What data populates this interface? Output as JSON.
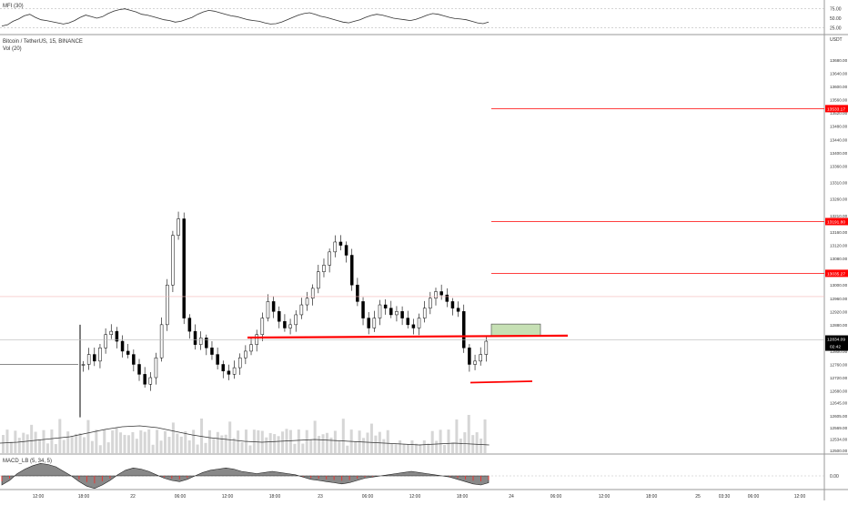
{
  "mfi_panel": {
    "label": "MFI (30)",
    "ticks": [
      "75.00",
      "50.00",
      "25.00"
    ],
    "tick_values": [
      75,
      50,
      25
    ],
    "range": [
      15,
      85
    ],
    "series": [
      30,
      33,
      42,
      48,
      56,
      60,
      52,
      46,
      44,
      41,
      38,
      35,
      38,
      44,
      52,
      58,
      54,
      50,
      54,
      62,
      68,
      72,
      74,
      70,
      66,
      60,
      58,
      54,
      50,
      46,
      44,
      40,
      42,
      47,
      52,
      60,
      66,
      70,
      68,
      64,
      60,
      56,
      54,
      50,
      46,
      44,
      42,
      38,
      35,
      36,
      40,
      46,
      52,
      58,
      62,
      64,
      60,
      55,
      52,
      48,
      44,
      40,
      38,
      42,
      46,
      52,
      57,
      60,
      58,
      54,
      50,
      48,
      46,
      44,
      47,
      52,
      58,
      62,
      60,
      56,
      52,
      49,
      48,
      46,
      42,
      38,
      36,
      40
    ]
  },
  "price_panel": {
    "title": "Bitcoin / TetherUS, 15, BINANCE",
    "vol_label": "Vol (20)",
    "currency": "USDT",
    "axis_ticks": [
      "13680.00",
      "13640.00",
      "13600.00",
      "13560.00",
      "13520.00",
      "13480.00",
      "13440.00",
      "13400.00",
      "13360.00",
      "13310.00",
      "13260.00",
      "13210.00",
      "13160.00",
      "13120.00",
      "13080.00",
      "13040.00",
      "13000.00",
      "12960.00",
      "12920.00",
      "12880.00",
      "12840.00",
      "12800.00",
      "12760.00",
      "12720.00",
      "12680.00",
      "12645.00",
      "12605.00",
      "12569.00",
      "12534.00",
      "12500.00"
    ],
    "tick_values": [
      13680,
      13640,
      13600,
      13560,
      13520,
      13480,
      13440,
      13400,
      13360,
      13310,
      13260,
      13210,
      13160,
      13120,
      13080,
      13040,
      13000,
      12960,
      12920,
      12880,
      12840,
      12800,
      12760,
      12720,
      12680,
      12645,
      12605,
      12569,
      12534,
      12500
    ],
    "current_price": "12834.09",
    "countdown": "02:42",
    "horizontal_lines": [
      {
        "label": "13533.17",
        "value": 13533.17
      },
      {
        "label": "13191.80",
        "value": 13191.8
      },
      {
        "label": "13035.27",
        "value": 13035.27
      }
    ],
    "support_levels": [
      12844,
      12707
    ],
    "highlight_zone": [
      12846,
      12882
    ],
    "colors": {
      "up": "#ffffff",
      "down": "#000000",
      "line": "#ff0000",
      "zone": "#c6e0b4",
      "volume": "#d6d6d6",
      "vol_ma": "#333333"
    },
    "closes": [
      12760,
      12790,
      12770,
      12810,
      12850,
      12860,
      12830,
      12800,
      12790,
      12760,
      12730,
      12700,
      12720,
      12780,
      12880,
      13000,
      13150,
      13200,
      12900,
      12860,
      12820,
      12840,
      12810,
      12790,
      12760,
      12740,
      12730,
      12750,
      12780,
      12800,
      12820,
      12850,
      12900,
      12950,
      12920,
      12890,
      12870,
      12880,
      12910,
      12940,
      12960,
      12990,
      13040,
      13060,
      13100,
      13130,
      13120,
      13090,
      13000,
      12950,
      12900,
      12870,
      12900,
      12940,
      12930,
      12910,
      12920,
      12900,
      12880,
      12870,
      12900,
      12930,
      12960,
      12980,
      12970,
      12950,
      12930,
      12920,
      12810,
      12760,
      12770,
      12790,
      12830
    ]
  },
  "macd_panel": {
    "label": "MACD_LB (5, 34, 5)",
    "tick": "0.00",
    "series": [
      -40,
      -20,
      10,
      30,
      45,
      55,
      50,
      40,
      20,
      0,
      -25,
      -45,
      -55,
      -40,
      -20,
      5,
      25,
      35,
      30,
      20,
      5,
      -10,
      -20,
      -25,
      -15,
      0,
      15,
      25,
      30,
      35,
      30,
      20,
      15,
      10,
      15,
      20,
      15,
      10,
      5,
      -5,
      -15,
      -20,
      -25,
      -30,
      -35,
      -30,
      -20,
      -10,
      -5,
      0,
      5,
      10,
      15,
      20,
      15,
      10,
      5,
      0,
      -5,
      -15,
      -25,
      -35,
      -40,
      -30
    ]
  },
  "time_axis": [
    "12:00",
    "18:00",
    "22",
    "06:00",
    "12:00",
    "18:00",
    "23",
    "06:00",
    "12:00",
    "18:00",
    "24",
    "06:00",
    "12:00",
    "18:00",
    "25",
    "03:30",
    "06:00",
    "12:00"
  ]
}
